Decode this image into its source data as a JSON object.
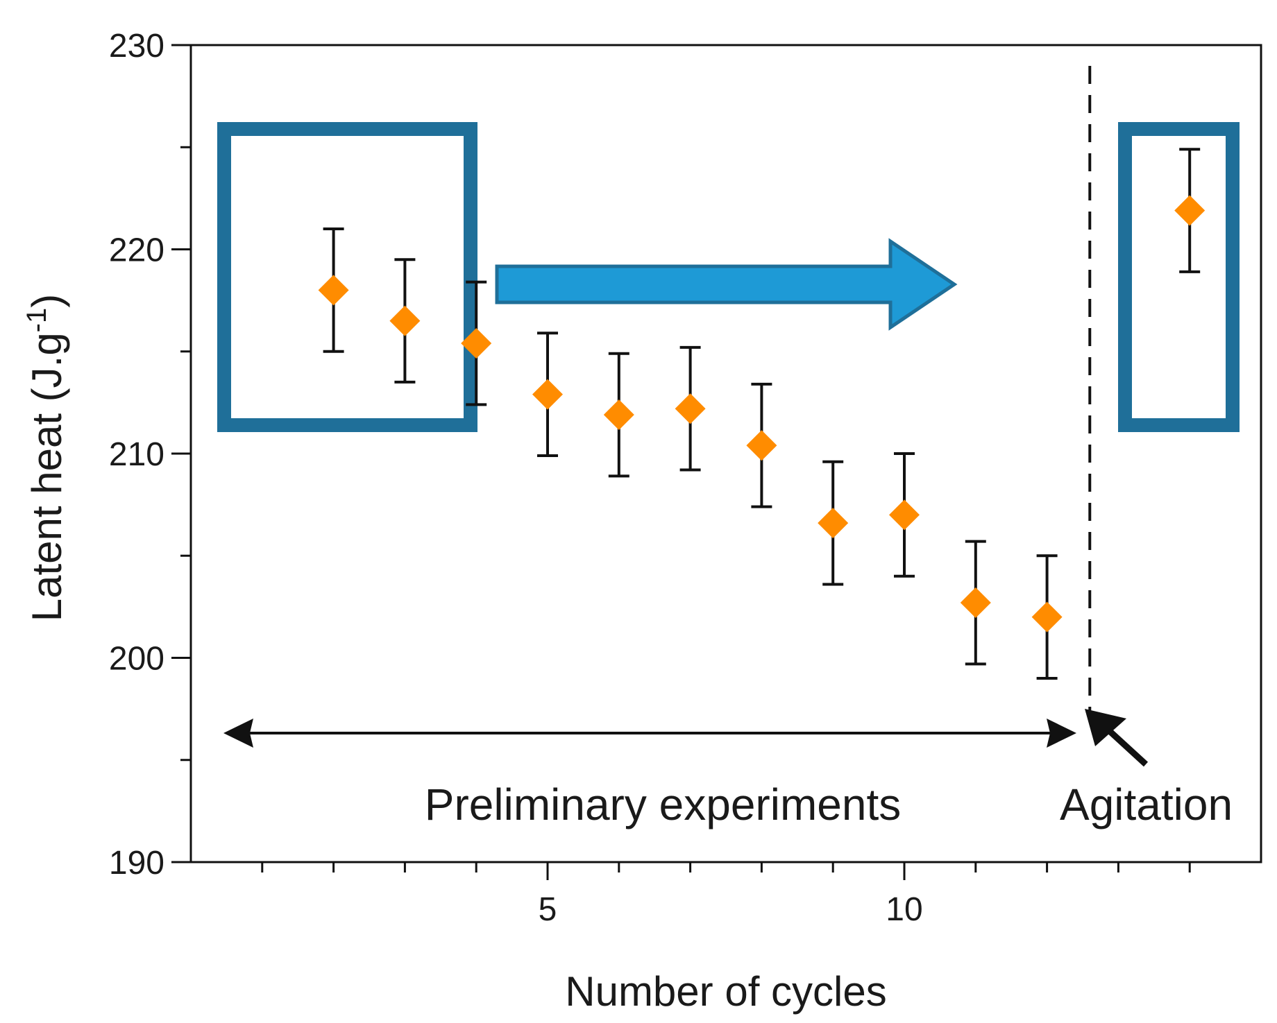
{
  "chart_data": {
    "type": "scatter",
    "title": "",
    "xlabel": "Number of cycles",
    "ylabel_main": "Latent heat (J.g",
    "ylabel_sup": "-1",
    "ylabel_close": ")",
    "xlim": [
      0,
      15
    ],
    "ylim": [
      190,
      230
    ],
    "xticks_major": [
      5,
      10
    ],
    "xticks_minor": [
      1,
      2,
      3,
      4,
      6,
      7,
      8,
      9,
      11,
      12,
      13,
      14
    ],
    "xtick_labels": [
      "5",
      "10"
    ],
    "yticks_major": [
      190,
      200,
      210,
      220,
      230
    ],
    "yticks_minor": [
      195,
      205,
      215,
      225
    ],
    "ytick_labels": [
      "190",
      "200",
      "210",
      "220",
      "230"
    ],
    "marker_color": "#ff8c00",
    "highlight_color": "#1f6f99",
    "arrow_fill": "#1e9ad6",
    "series": [
      {
        "name": "Latent heat",
        "points": [
          {
            "x": 2,
            "y": 218.0,
            "err": 3.0
          },
          {
            "x": 3,
            "y": 216.5,
            "err": 3.0
          },
          {
            "x": 4,
            "y": 215.4,
            "err": 3.0
          },
          {
            "x": 5,
            "y": 212.9,
            "err": 3.0
          },
          {
            "x": 6,
            "y": 211.9,
            "err": 3.0
          },
          {
            "x": 7,
            "y": 212.2,
            "err": 3.0
          },
          {
            "x": 8,
            "y": 210.4,
            "err": 3.0
          },
          {
            "x": 9,
            "y": 206.6,
            "err": 3.0
          },
          {
            "x": 10,
            "y": 207.0,
            "err": 3.0
          },
          {
            "x": 11,
            "y": 202.7,
            "err": 3.0
          },
          {
            "x": 12,
            "y": 202.0,
            "err": 3.0
          },
          {
            "x": 14,
            "y": 221.9,
            "err": 3.0
          }
        ]
      }
    ],
    "annotations": {
      "preliminary": "Preliminary experiments",
      "agitation": "Agitation",
      "divider_x": 12.6
    }
  }
}
